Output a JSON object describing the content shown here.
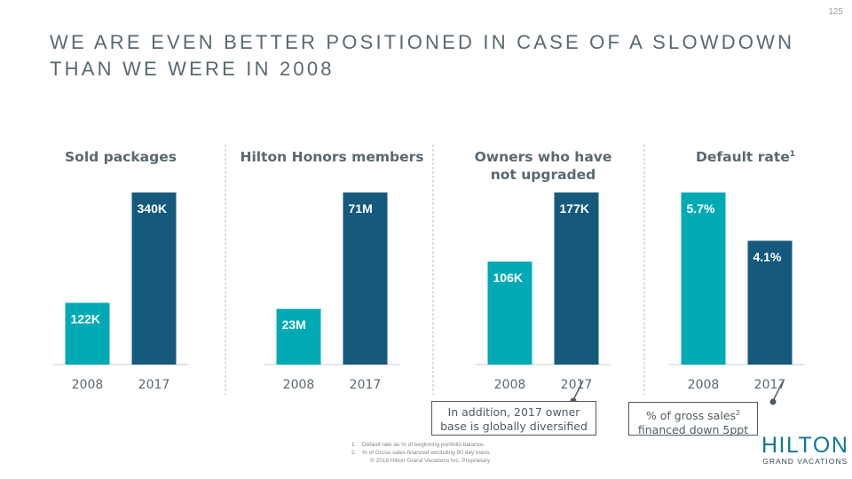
{
  "page_number": "125",
  "title": {
    "line1": "WE ARE EVEN BETTER POSITIONED IN CASE OF A SLOWDOWN",
    "line2": "THAN WE WERE IN 2008"
  },
  "colors": {
    "bar_2008": "#00aab5",
    "bar_2017": "#155a7c",
    "heading": "#5a6870",
    "axis_label": "#5a6870"
  },
  "chart_data": [
    {
      "type": "bar",
      "title": "Sold packages",
      "categories": [
        "2008",
        "2017"
      ],
      "values": [
        122000,
        340000
      ],
      "labels": [
        "122K",
        "340K"
      ]
    },
    {
      "type": "bar",
      "title": "Hilton Honors members",
      "categories": [
        "2008",
        "2017"
      ],
      "values": [
        23000000,
        71000000
      ],
      "labels": [
        "23M",
        "71M"
      ]
    },
    {
      "type": "bar",
      "title": "Owners who have not upgraded",
      "title_lines": [
        "Owners who have",
        "not upgraded"
      ],
      "categories": [
        "2008",
        "2017"
      ],
      "values": [
        106000,
        177000
      ],
      "labels": [
        "106K",
        "177K"
      ]
    },
    {
      "type": "bar",
      "title": "Default rate",
      "title_sup": "1",
      "categories": [
        "2008",
        "2017"
      ],
      "values": [
        5.7,
        4.1
      ],
      "labels": [
        "5.7%",
        "4.1%"
      ]
    }
  ],
  "callouts": {
    "owners": {
      "line1": "In addition, 2017 owner",
      "line2": "base is globally diversified"
    },
    "default": {
      "line1_prefix": "% of gross sales",
      "line1_sup": "2",
      "line2": "financed down 5ppt"
    }
  },
  "footnotes": {
    "items": [
      {
        "num": "1.",
        "text": "Default rate as % of beginning portfolio balance."
      },
      {
        "num": "2.",
        "text": "% of Gross sales financed excluding 90 day loans."
      }
    ],
    "copyright": "© 2018 Hilton Grand Vacations Inc. Proprietary"
  },
  "logo": {
    "main": "HILTON",
    "sub": "GRAND VACATIONS"
  }
}
